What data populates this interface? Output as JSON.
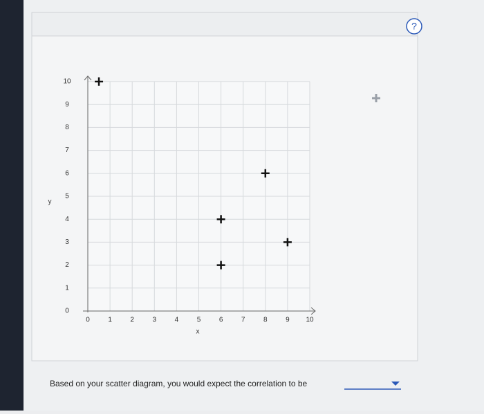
{
  "chart_data": {
    "type": "scatter",
    "x_label": "x",
    "y_label": "y",
    "x": [
      0.5,
      6,
      6,
      8,
      9
    ],
    "values": [
      10,
      4,
      2,
      6,
      3
    ],
    "color": "#111111",
    "xlim": [
      0,
      10
    ],
    "ylim": [
      0,
      10
    ],
    "xticks": [
      0,
      1,
      2,
      3,
      4,
      5,
      6,
      7,
      8,
      9,
      10
    ],
    "yticks": [
      0,
      1,
      2,
      3,
      4,
      5,
      6,
      7,
      8,
      9,
      10
    ],
    "grid": true
  },
  "question": {
    "text": "Based on your scatter diagram, you would expect the correlation to be",
    "help": "?"
  }
}
